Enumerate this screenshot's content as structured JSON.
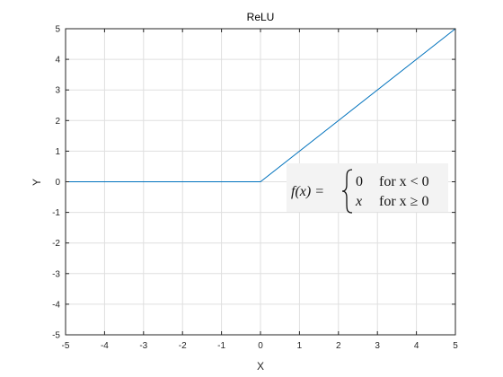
{
  "chart_data": {
    "type": "line",
    "title": "ReLU",
    "xlabel": "X",
    "ylabel": "Y",
    "xlim": [
      -5,
      5
    ],
    "ylim": [
      -5,
      5
    ],
    "xticks": [
      -5,
      -4,
      -3,
      -2,
      -1,
      0,
      1,
      2,
      3,
      4,
      5
    ],
    "yticks": [
      -5,
      -4,
      -3,
      -2,
      -1,
      0,
      1,
      2,
      3,
      4,
      5
    ],
    "grid": true,
    "series": [
      {
        "x": [
          -5,
          0,
          5
        ],
        "y": [
          0,
          0,
          5
        ],
        "color": "#0072BD"
      }
    ],
    "annotation": {
      "lhs": "f(x) =",
      "case1_value": "0",
      "case1_condition": "for x < 0",
      "case2_value": "x",
      "case2_condition": "for x ≥ 0"
    }
  },
  "colors": {
    "axis": "#262626",
    "grid": "#dfdfdf",
    "series": "#0072BD",
    "annotation_bg": "#f3f3f3"
  }
}
